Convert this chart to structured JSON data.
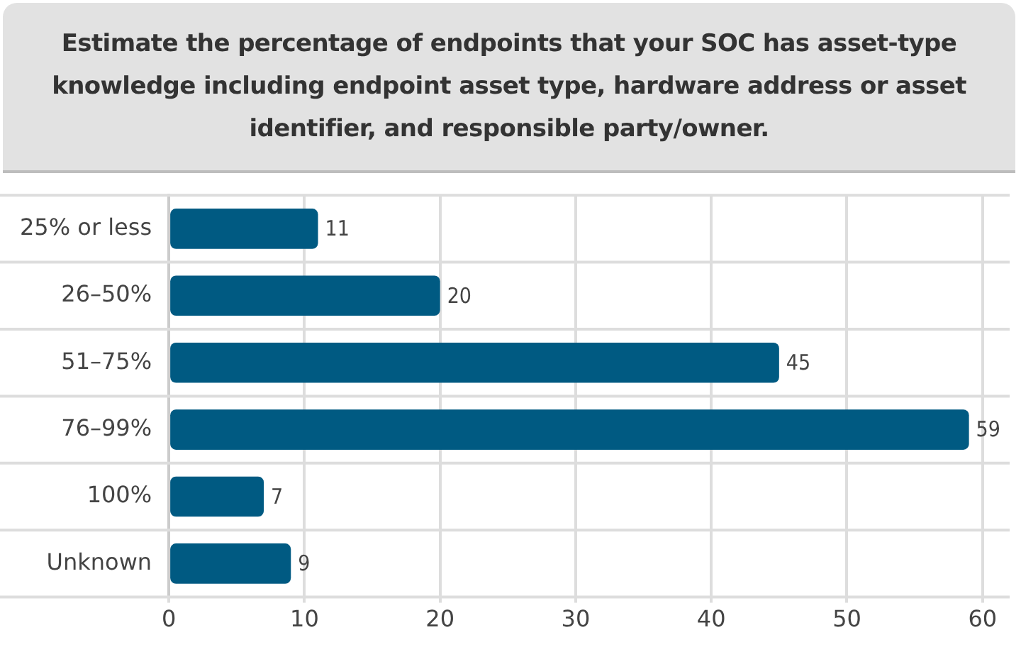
{
  "chart_data": {
    "type": "bar",
    "orientation": "horizontal",
    "title": "Estimate the percentage of endpoints that your SOC has asset-type knowledge including endpoint asset type, hardware address or asset identifier, and responsible party/owner.",
    "categories": [
      "25% or less",
      "26–50%",
      "51–75%",
      "76–99%",
      "100%",
      "Unknown"
    ],
    "values": [
      11,
      20,
      45,
      59,
      7,
      9
    ],
    "data_labels": true,
    "color": "#005a82",
    "xlim": [
      0,
      62
    ],
    "xticks": [
      0,
      10,
      20,
      30,
      40,
      50,
      60
    ],
    "grid": true,
    "legend": false
  }
}
